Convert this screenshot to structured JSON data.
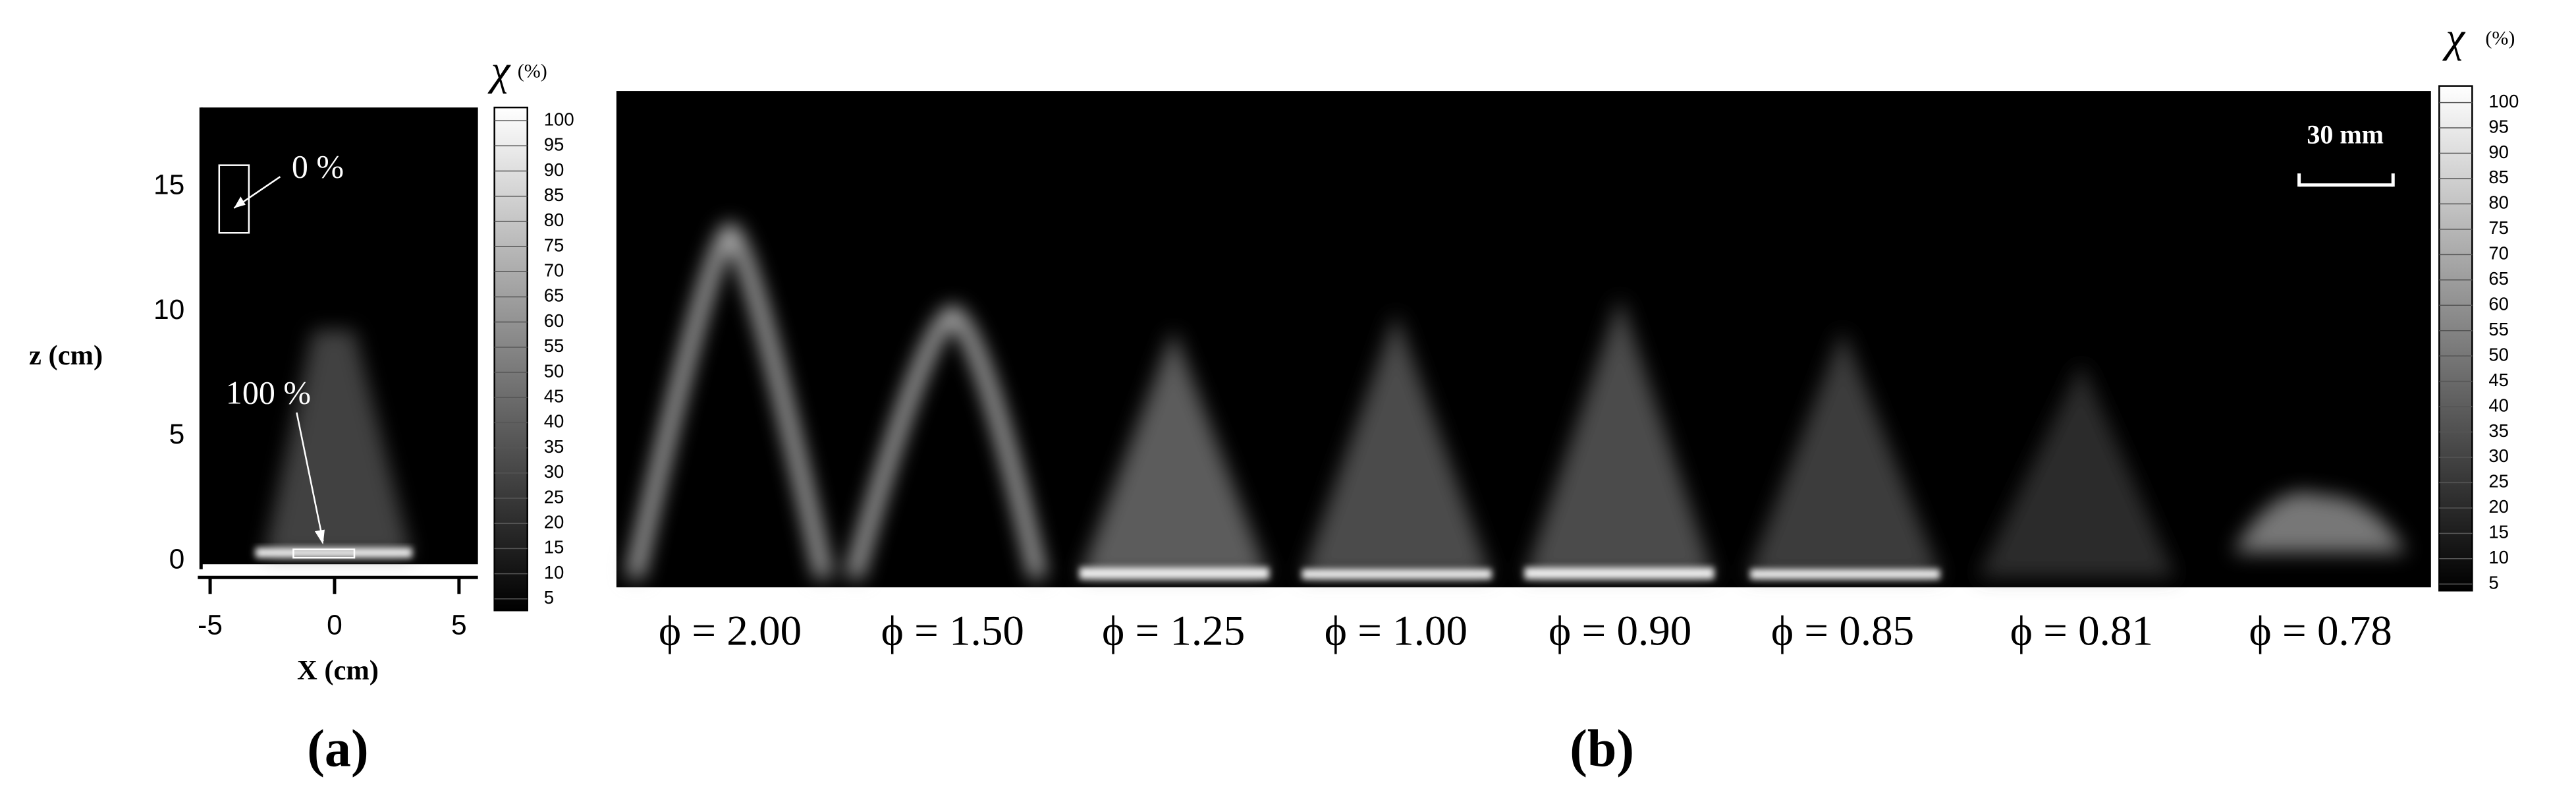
{
  "panel_a": {
    "label": "(a)",
    "x_label": "X (cm)",
    "z_label": "z (cm)",
    "x_ticks": [
      -5,
      0,
      5
    ],
    "z_ticks": [
      0,
      5,
      10,
      15
    ],
    "annotations": [
      "0 %",
      "100 %"
    ],
    "colorbar": {
      "title": "χ",
      "unit": "(%)",
      "ticks": [
        100,
        95,
        90,
        85,
        80,
        75,
        70,
        65,
        60,
        55,
        50,
        45,
        40,
        35,
        30,
        25,
        20,
        15,
        10,
        5
      ]
    }
  },
  "panel_b": {
    "label": "(b)",
    "scale_bar": "30 mm",
    "flames": [
      {
        "label": "ϕ = 2.00"
      },
      {
        "label": "ϕ = 1.50"
      },
      {
        "label": "ϕ = 1.25"
      },
      {
        "label": "ϕ = 1.00"
      },
      {
        "label": "ϕ = 0.90"
      },
      {
        "label": "ϕ = 0.85"
      },
      {
        "label": "ϕ = 0.81"
      },
      {
        "label": "ϕ = 0.78"
      }
    ],
    "colorbar": {
      "title": "χ",
      "unit": "(%)",
      "ticks": [
        100,
        95,
        90,
        85,
        80,
        75,
        70,
        65,
        60,
        55,
        50,
        45,
        40,
        35,
        30,
        25,
        20,
        15,
        10,
        5
      ]
    }
  }
}
